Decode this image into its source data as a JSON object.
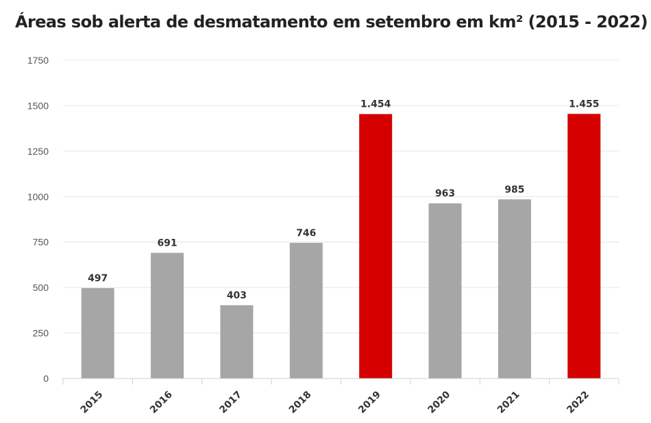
{
  "chart_data": {
    "type": "bar",
    "title": "Áreas sob alerta de desmatamento em setembro em km² (2015 - 2022)",
    "xlabel": "",
    "ylabel": "",
    "categories": [
      "2015",
      "2016",
      "2017",
      "2018",
      "2019",
      "2020",
      "2021",
      "2022"
    ],
    "values": [
      497,
      691,
      403,
      746,
      1454,
      963,
      985,
      1455
    ],
    "data_labels": [
      "497",
      "691",
      "403",
      "746",
      "1.454",
      "963",
      "985",
      "1.455"
    ],
    "ylim": [
      0,
      1750
    ],
    "yticks": [
      "0",
      "250",
      "500",
      "750",
      "1000",
      "1250",
      "1500",
      "1750"
    ],
    "grid": true,
    "colors": {
      "default_bar": "#a6a6a6",
      "highlight_bar": "#d40000"
    },
    "highlighted_categories": [
      "2019",
      "2022"
    ]
  }
}
